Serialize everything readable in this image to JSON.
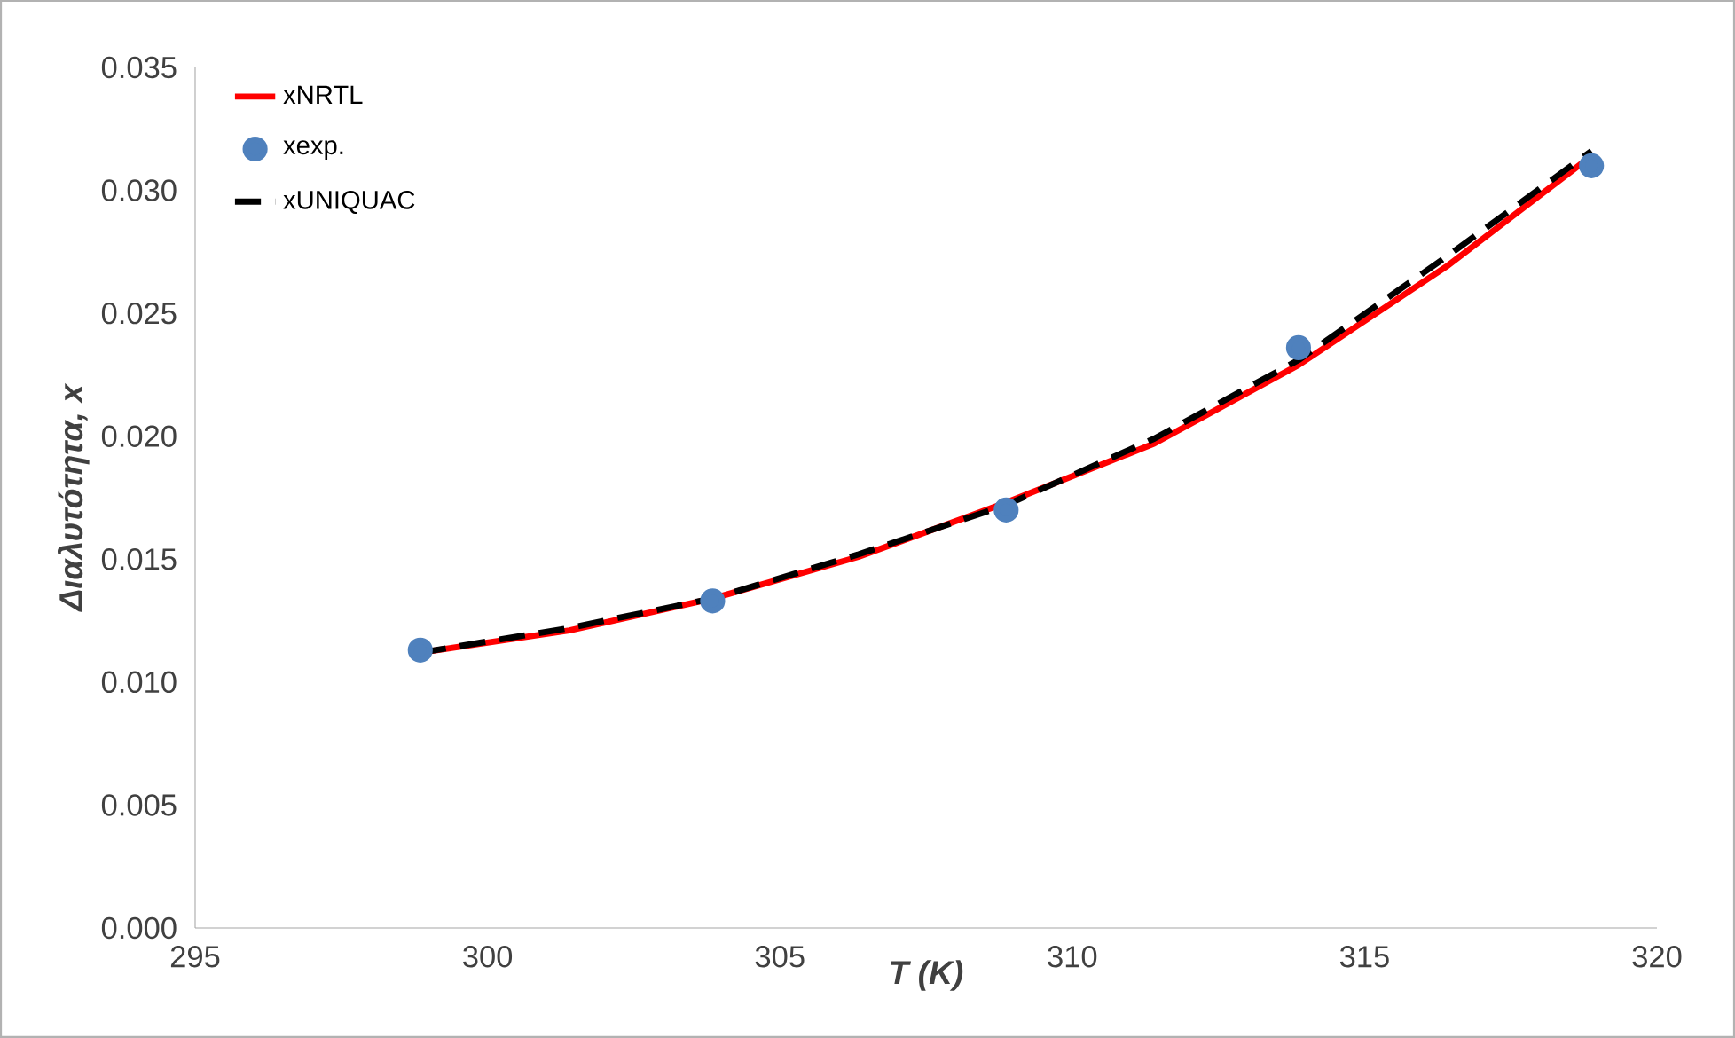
{
  "chart_data": {
    "type": "line",
    "xlabel": "**T (K)**",
    "ylabel": "**Διαλυτότητα, x**",
    "xlim": [
      295,
      320
    ],
    "xticks": [
      295,
      300,
      305,
      310,
      315,
      320
    ],
    "ylim": [
      0,
      0.035
    ],
    "yticks": [
      {
        "value": 0,
        "label": "0.000"
      },
      {
        "value": 0.005,
        "label": "0.005"
      },
      {
        "value": 0.01,
        "label": "0.010"
      },
      {
        "value": 0.015,
        "label": "0.015"
      },
      {
        "value": 0.02,
        "label": "0.020"
      },
      {
        "value": 0.025,
        "label": "0.025"
      },
      {
        "value": 0.03,
        "label": "0.030"
      },
      {
        "value": 0.035,
        "label": "0.035"
      }
    ],
    "grid": false,
    "legend": "top left",
    "series": [
      {
        "name": "xNRTL",
        "color": "#ff0000",
        "marker": "none",
        "line_style": "solid",
        "x": [
          298.85,
          301.4,
          303.85,
          306.35,
          308.87,
          311.4,
          313.87,
          316.4,
          318.88
        ],
        "values": [
          0.0112,
          0.0121,
          0.0134,
          0.0151,
          0.0173,
          0.0197,
          0.0229,
          0.0269,
          0.0314
        ]
      },
      {
        "name": "xexp.",
        "type": "scatter",
        "color": "#4f81bd",
        "marker": "circle",
        "x": [
          298.85,
          303.85,
          308.87,
          313.87,
          318.88
        ],
        "values": [
          0.0113,
          0.0133,
          0.017,
          0.0236,
          0.031
        ]
      },
      {
        "name": "xUNIQUAC",
        "color": "#000000",
        "marker": "none",
        "line_style": "dashed",
        "x": [
          298.85,
          301.4,
          303.85,
          306.35,
          308.87,
          311.4,
          313.87,
          316.4,
          318.88
        ],
        "values": [
          0.0112,
          0.0122,
          0.0134,
          0.0152,
          0.0172,
          0.0199,
          0.0231,
          0.0273,
          0.0316
        ]
      }
    ]
  }
}
